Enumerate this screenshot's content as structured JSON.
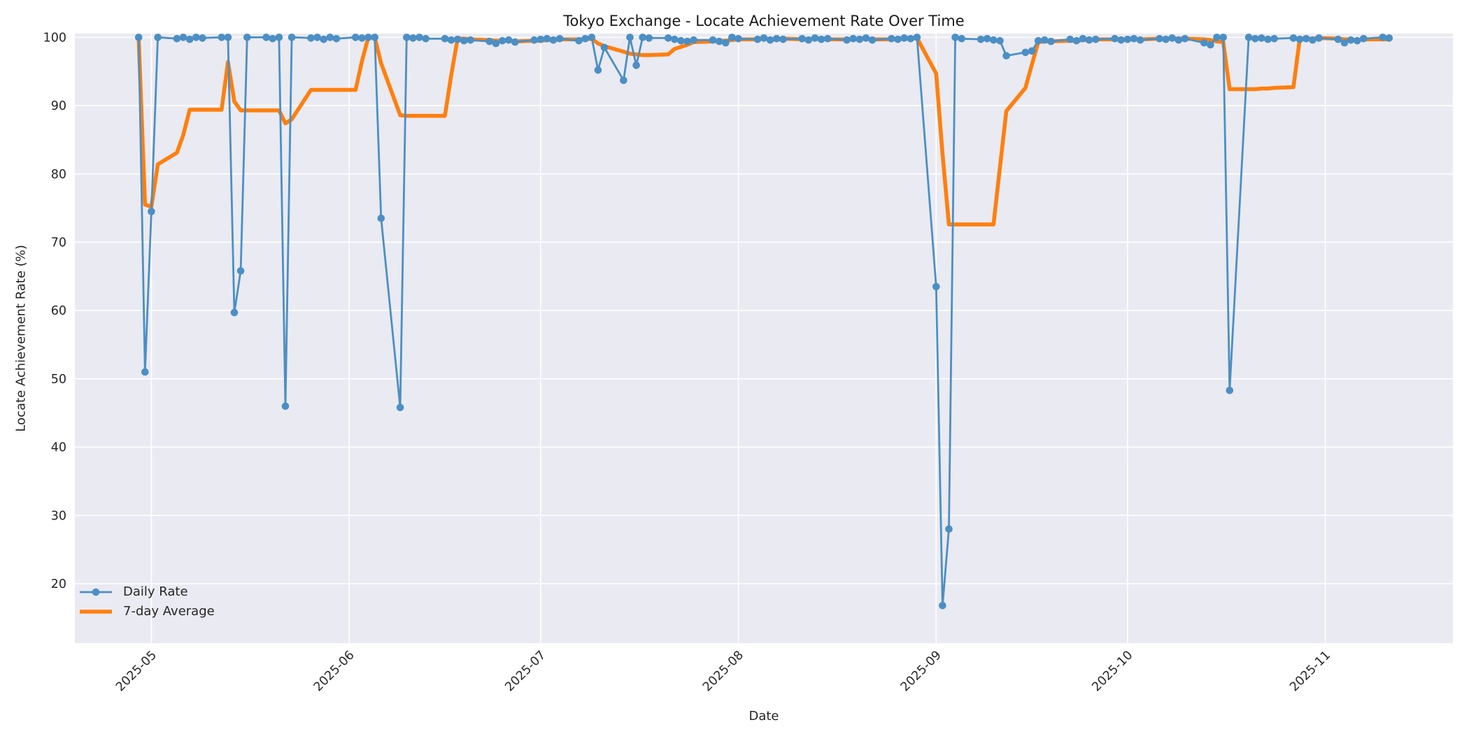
{
  "figure": {
    "background": "#ffffff",
    "plot_background": "#eaeaf2",
    "grid_color": "#ffffff",
    "text_color": "#262626"
  },
  "chart_data": {
    "type": "line",
    "title": "Tokyo Exchange - Locate Achievement Rate Over Time",
    "xlabel": "Date",
    "ylabel": "Locate Achievement Rate (%)",
    "grid": true,
    "legend_position": "lower left",
    "ylim": [
      11.3,
      100.55
    ],
    "xlim": [
      "2025-04-19",
      "2025-11-21"
    ],
    "yticks": [
      20,
      30,
      40,
      50,
      60,
      70,
      80,
      90,
      100
    ],
    "xticks": [
      {
        "label": "2025-05",
        "date": "2025-05-01"
      },
      {
        "label": "2025-06",
        "date": "2025-06-01"
      },
      {
        "label": "2025-07",
        "date": "2025-07-01"
      },
      {
        "label": "2025-08",
        "date": "2025-08-01"
      },
      {
        "label": "2025-09",
        "date": "2025-09-01"
      },
      {
        "label": "2025-10",
        "date": "2025-10-01"
      },
      {
        "label": "2025-11",
        "date": "2025-11-01"
      }
    ],
    "x": [
      "2025-04-29",
      "2025-04-30",
      "2025-05-01",
      "2025-05-02",
      "2025-05-05",
      "2025-05-06",
      "2025-05-07",
      "2025-05-08",
      "2025-05-09",
      "2025-05-12",
      "2025-05-13",
      "2025-05-14",
      "2025-05-15",
      "2025-05-16",
      "2025-05-19",
      "2025-05-20",
      "2025-05-21",
      "2025-05-22",
      "2025-05-23",
      "2025-05-26",
      "2025-05-27",
      "2025-05-28",
      "2025-05-29",
      "2025-05-30",
      "2025-06-02",
      "2025-06-03",
      "2025-06-04",
      "2025-06-05",
      "2025-06-06",
      "2025-06-09",
      "2025-06-10",
      "2025-06-11",
      "2025-06-12",
      "2025-06-13",
      "2025-06-16",
      "2025-06-17",
      "2025-06-18",
      "2025-06-19",
      "2025-06-20",
      "2025-06-23",
      "2025-06-24",
      "2025-06-25",
      "2025-06-26",
      "2025-06-27",
      "2025-06-30",
      "2025-07-01",
      "2025-07-02",
      "2025-07-03",
      "2025-07-04",
      "2025-07-07",
      "2025-07-08",
      "2025-07-09",
      "2025-07-10",
      "2025-07-11",
      "2025-07-14",
      "2025-07-15",
      "2025-07-16",
      "2025-07-17",
      "2025-07-18",
      "2025-07-21",
      "2025-07-22",
      "2025-07-23",
      "2025-07-24",
      "2025-07-25",
      "2025-07-28",
      "2025-07-29",
      "2025-07-30",
      "2025-07-31",
      "2025-08-01",
      "2025-08-04",
      "2025-08-05",
      "2025-08-06",
      "2025-08-07",
      "2025-08-08",
      "2025-08-11",
      "2025-08-12",
      "2025-08-13",
      "2025-08-14",
      "2025-08-15",
      "2025-08-18",
      "2025-08-19",
      "2025-08-20",
      "2025-08-21",
      "2025-08-22",
      "2025-08-25",
      "2025-08-26",
      "2025-08-27",
      "2025-08-28",
      "2025-08-29",
      "2025-09-01",
      "2025-09-02",
      "2025-09-03",
      "2025-09-04",
      "2025-09-05",
      "2025-09-08",
      "2025-09-09",
      "2025-09-10",
      "2025-09-11",
      "2025-09-12",
      "2025-09-15",
      "2025-09-16",
      "2025-09-17",
      "2025-09-18",
      "2025-09-19",
      "2025-09-22",
      "2025-09-23",
      "2025-09-24",
      "2025-09-25",
      "2025-09-26",
      "2025-09-29",
      "2025-09-30",
      "2025-10-01",
      "2025-10-02",
      "2025-10-03",
      "2025-10-06",
      "2025-10-07",
      "2025-10-08",
      "2025-10-09",
      "2025-10-10",
      "2025-10-13",
      "2025-10-14",
      "2025-10-15",
      "2025-10-16",
      "2025-10-17",
      "2025-10-20",
      "2025-10-21",
      "2025-10-22",
      "2025-10-23",
      "2025-10-24",
      "2025-10-27",
      "2025-10-28",
      "2025-10-29",
      "2025-10-30",
      "2025-10-31",
      "2025-11-03",
      "2025-11-04",
      "2025-11-05",
      "2025-11-06",
      "2025-11-07",
      "2025-11-10",
      "2025-11-11"
    ],
    "series": [
      {
        "name": "Daily Rate",
        "color": "#4b8fc5",
        "line_width": 2.8,
        "marker": true,
        "marker_size": 5.3,
        "values": [
          100,
          51.0,
          74.5,
          100,
          99.8,
          100,
          99.7,
          100,
          99.9,
          100,
          100,
          59.7,
          65.8,
          100,
          100,
          99.8,
          100,
          46.0,
          100,
          99.9,
          100,
          99.7,
          100,
          99.8,
          100,
          99.9,
          100,
          100,
          73.5,
          45.8,
          100,
          99.9,
          100,
          99.8,
          99.8,
          99.6,
          99.7,
          99.5,
          99.6,
          99.4,
          99.1,
          99.5,
          99.6,
          99.3,
          99.6,
          99.7,
          99.8,
          99.6,
          99.8,
          99.5,
          99.8,
          100,
          95.2,
          98.5,
          93.7,
          100,
          95.9,
          100,
          99.9,
          99.9,
          99.7,
          99.5,
          99.4,
          99.6,
          99.6,
          99.4,
          99.2,
          100,
          99.8,
          99.7,
          99.9,
          99.6,
          99.8,
          99.7,
          99.8,
          99.6,
          99.9,
          99.7,
          99.8,
          99.6,
          99.8,
          99.7,
          99.9,
          99.6,
          99.8,
          99.7,
          99.9,
          99.8,
          100,
          63.5,
          16.8,
          28.0,
          100,
          99.8,
          99.7,
          99.8,
          99.6,
          99.5,
          97.3,
          97.8,
          98.0,
          99.5,
          99.6,
          99.4,
          99.7,
          99.5,
          99.8,
          99.6,
          99.7,
          99.8,
          99.6,
          99.7,
          99.8,
          99.6,
          99.8,
          99.7,
          99.9,
          99.6,
          99.8,
          99.2,
          98.9,
          100,
          100,
          48.3,
          100,
          99.8,
          99.9,
          99.7,
          99.8,
          99.9,
          99.7,
          99.8,
          99.6,
          99.9,
          99.7,
          99.2,
          99.6,
          99.5,
          99.8,
          100,
          99.9
        ]
      },
      {
        "name": "7-day Average",
        "color": "#ff7f0e",
        "line_width": 5.6,
        "marker": false,
        "marker_size": 0,
        "values": [
          100,
          75.5,
          75.2,
          81.4,
          83.1,
          85.7,
          89.4,
          89.4,
          89.4,
          89.4,
          96.4,
          90.6,
          89.3,
          89.3,
          89.3,
          89.3,
          89.3,
          87.4,
          88.0,
          92.3,
          92.3,
          92.3,
          92.3,
          92.3,
          92.3,
          96.5,
          100,
          100,
          96.2,
          88.6,
          88.5,
          88.5,
          88.5,
          88.5,
          88.5,
          94.5,
          99.8,
          99.8,
          99.7,
          99.6,
          99.5,
          99.5,
          99.5,
          99.4,
          99.5,
          99.5,
          99.6,
          99.6,
          99.7,
          99.7,
          99.7,
          99.8,
          99.1,
          98.7,
          97.9,
          97.6,
          97.5,
          97.4,
          97.4,
          97.5,
          98.3,
          98.6,
          98.9,
          99.3,
          99.4,
          99.5,
          99.5,
          99.6,
          99.7,
          99.7,
          99.8,
          99.7,
          99.7,
          99.8,
          99.7,
          99.7,
          99.8,
          99.8,
          99.7,
          99.7,
          99.7,
          99.8,
          99.8,
          99.7,
          99.7,
          99.8,
          99.8,
          99.8,
          99.9,
          94.7,
          82.9,
          72.6,
          72.6,
          72.6,
          72.6,
          72.6,
          72.6,
          81.0,
          89.2,
          92.6,
          96.0,
          99.3,
          99.4,
          99.4,
          99.5,
          99.5,
          99.6,
          99.6,
          99.7,
          99.7,
          99.7,
          99.7,
          99.7,
          99.7,
          99.8,
          99.8,
          99.8,
          99.8,
          99.8,
          99.7,
          99.6,
          99.4,
          99.3,
          92.4,
          92.4,
          92.4,
          92.5,
          92.5,
          92.6,
          92.7,
          99.8,
          99.8,
          99.8,
          99.9,
          99.8,
          99.7,
          99.7,
          99.6,
          99.7,
          99.7,
          99.7
        ]
      }
    ]
  }
}
